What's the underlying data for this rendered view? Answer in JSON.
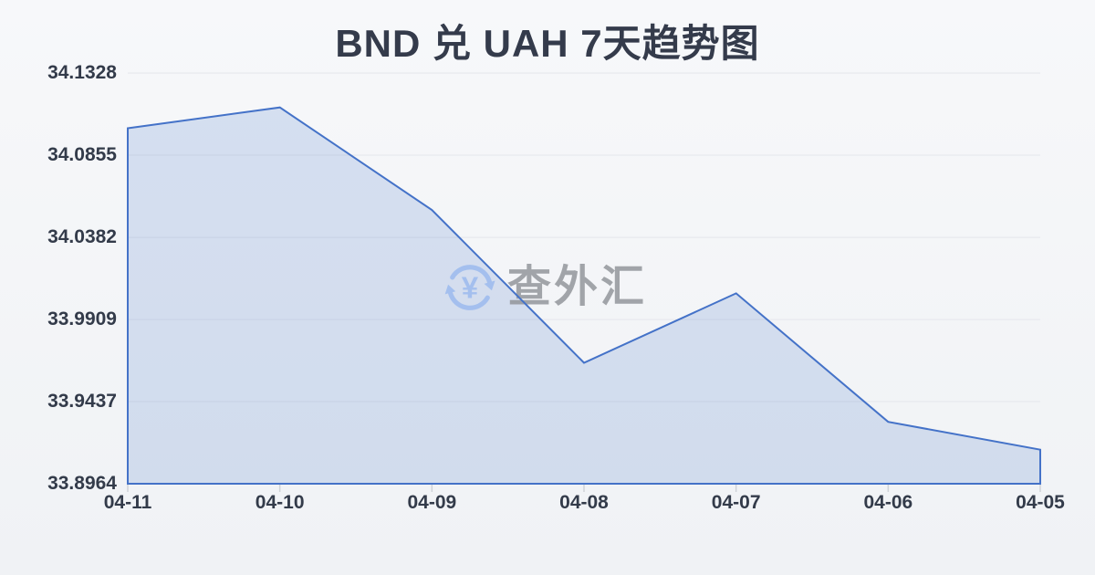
{
  "title": "BND 兑 UAH 7天趋势图",
  "watermark": {
    "text": "查外汇",
    "icon": "yen-exchange-refresh-icon",
    "currency_symbol": "¥"
  },
  "colors": {
    "line": "#4472c8",
    "fill": "rgba(68,114,200,0.18)",
    "grid": "#e4e6eb",
    "tick": "#cfd3d9",
    "title_text": "#343b4b",
    "axis_text": "#333b4a",
    "watermark_text": "#909398",
    "watermark_icon": "#9cbaee",
    "background_top": "#f7f8fa",
    "background_bottom": "#f0f2f5"
  },
  "chart_data": {
    "type": "area",
    "title": "BND 兑 UAH 7天趋势图",
    "x": [
      "04-11",
      "04-10",
      "04-09",
      "04-08",
      "04-07",
      "04-06",
      "04-05"
    ],
    "values": [
      34.101,
      34.113,
      34.054,
      33.966,
      34.006,
      33.932,
      33.916
    ],
    "y_tick_labels": [
      "34.1328",
      "34.0855",
      "34.0382",
      "33.9909",
      "33.9437",
      "33.8964"
    ],
    "y_ticks": [
      34.1328,
      34.0855,
      34.0382,
      33.9909,
      33.9437,
      33.8964
    ],
    "ylim": [
      33.8964,
      34.1328
    ],
    "xlabel": "",
    "ylabel": "",
    "grid": "horizontal",
    "legend": "none"
  }
}
